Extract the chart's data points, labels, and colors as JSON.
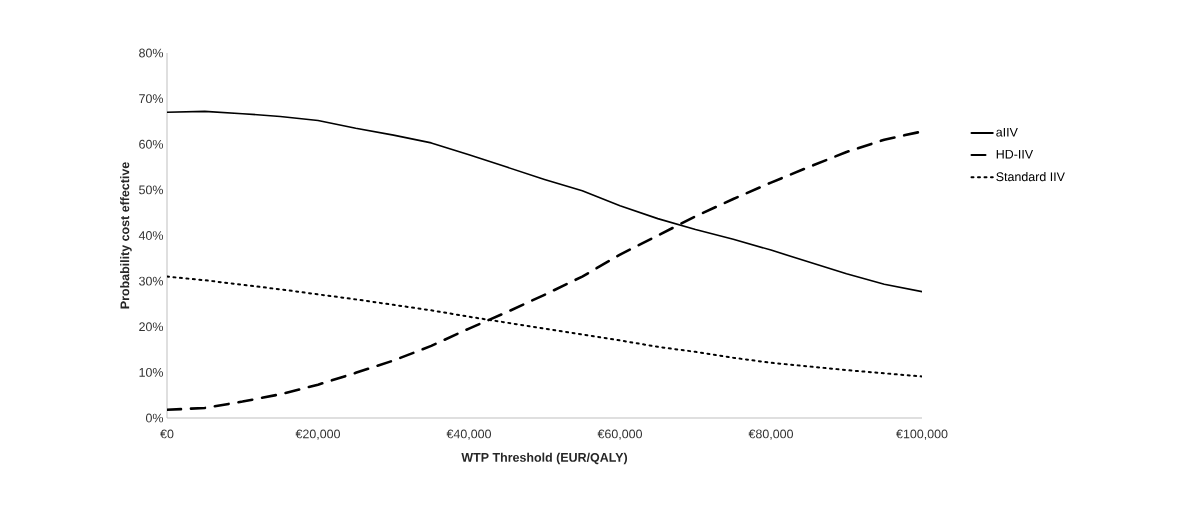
{
  "chart_data": {
    "type": "line",
    "xlabel": "WTP Threshold (EUR/QALY)",
    "ylabel": "Probability cost effective",
    "x": [
      0,
      5000,
      10000,
      15000,
      20000,
      25000,
      30000,
      35000,
      40000,
      45000,
      50000,
      55000,
      60000,
      65000,
      70000,
      75000,
      80000,
      85000,
      90000,
      95000,
      100000
    ],
    "series": [
      {
        "name": "aIIV",
        "color": "#000000",
        "line_style": "solid",
        "values": [
          67,
          67.2,
          66.7,
          66.1,
          65.2,
          63.5,
          62,
          60.3,
          57.7,
          55,
          52.3,
          49.8,
          46.5,
          43.7,
          41.3,
          39.2,
          36.8,
          34.2,
          31.6,
          29.3,
          27.7
        ]
      },
      {
        "name": "HD-IIV",
        "color": "#000000",
        "line_style": "dashed",
        "values": [
          1.8,
          2.2,
          3.6,
          5.2,
          7.3,
          9.9,
          12.6,
          15.8,
          19.6,
          23.2,
          27,
          31,
          35.8,
          40,
          44.2,
          48,
          51.6,
          55,
          58.3,
          61,
          62.8
        ]
      },
      {
        "name": "Standard IIV",
        "color": "#000000",
        "line_style": "dotted",
        "values": [
          31,
          30.2,
          29.2,
          28.2,
          27.1,
          26,
          24.8,
          23.6,
          22.2,
          20.9,
          19.6,
          18.3,
          17,
          15.6,
          14.5,
          13.2,
          12.1,
          11.3,
          10.5,
          9.8,
          9.1
        ]
      }
    ],
    "xlim": [
      0,
      100000
    ],
    "xticks": [
      {
        "value": 0,
        "label": "€0"
      },
      {
        "value": 20000,
        "label": "€20,000"
      },
      {
        "value": 40000,
        "label": "€40,000"
      },
      {
        "value": 60000,
        "label": "€60,000"
      },
      {
        "value": 80000,
        "label": "€80,000"
      },
      {
        "value": 100000,
        "label": "€100,000"
      }
    ],
    "ylim": [
      0,
      80
    ],
    "yticks": [
      {
        "value": 0,
        "label": "0%"
      },
      {
        "value": 10,
        "label": "10%"
      },
      {
        "value": 20,
        "label": "20%"
      },
      {
        "value": 30,
        "label": "30%"
      },
      {
        "value": 40,
        "label": "40%"
      },
      {
        "value": 50,
        "label": "50%"
      },
      {
        "value": 60,
        "label": "60%"
      },
      {
        "value": 70,
        "label": "70%"
      },
      {
        "value": 80,
        "label": "80%"
      }
    ],
    "grid": false,
    "legend": "right",
    "marker": "none"
  }
}
